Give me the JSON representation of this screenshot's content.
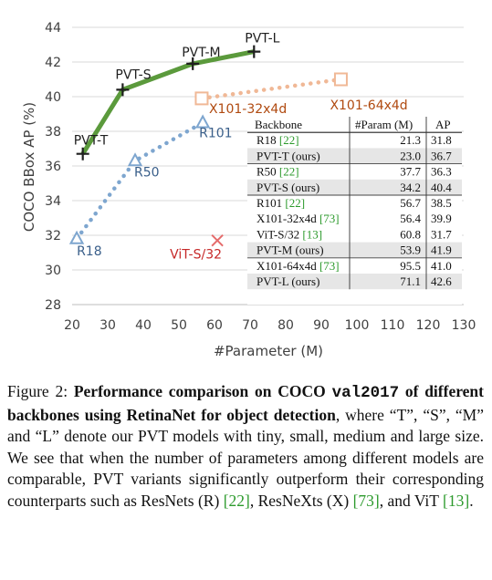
{
  "chart_data": {
    "type": "scatter",
    "xlabel": "#Parameter (M)",
    "ylabel": "COCO BBox AP (%)",
    "xlim": [
      20,
      130
    ],
    "ylim": [
      28,
      44
    ],
    "xticks": [
      20,
      30,
      40,
      50,
      60,
      70,
      80,
      90,
      100,
      110,
      120,
      130
    ],
    "yticks": [
      28,
      30,
      32,
      34,
      36,
      38,
      40,
      42,
      44
    ],
    "grid": "horizontal",
    "series": [
      {
        "name": "PVT",
        "style": "line-plus",
        "color": "#5b9a3c",
        "points": [
          {
            "label": "PVT-T",
            "x": 23.0,
            "y": 36.7
          },
          {
            "label": "PVT-S",
            "x": 34.2,
            "y": 40.4
          },
          {
            "label": "PVT-M",
            "x": 53.9,
            "y": 41.9
          },
          {
            "label": "PVT-L",
            "x": 71.1,
            "y": 42.6
          }
        ]
      },
      {
        "name": "R",
        "style": "dotted-triangle",
        "color": "#7ea6cf",
        "label_color": "#3a5f8a",
        "points": [
          {
            "label": "R18",
            "x": 21.3,
            "y": 31.8
          },
          {
            "label": "R50",
            "x": 37.7,
            "y": 36.3
          },
          {
            "label": "R101",
            "x": 56.7,
            "y": 38.5
          }
        ]
      },
      {
        "name": "X",
        "style": "dotted-square",
        "color": "#f0b896",
        "label_color": "#b04a10",
        "points": [
          {
            "label": "X101-32x4d",
            "x": 56.4,
            "y": 39.9
          },
          {
            "label": "X101-64x4d",
            "x": 95.5,
            "y": 41.0
          }
        ]
      },
      {
        "name": "ViT",
        "style": "cross",
        "color": "#e56b6b",
        "label_color": "#c62828",
        "points": [
          {
            "label": "ViT-S/32",
            "x": 60.8,
            "y": 31.7
          }
        ]
      }
    ],
    "table": {
      "headers": [
        "Backbone",
        "#Param (M)",
        "AP"
      ],
      "groups": [
        [
          {
            "name": "R18 ",
            "ref": "[22]",
            "param": "21.3",
            "ap": "31.8",
            "shade": false
          },
          {
            "name": "PVT-T (ours)",
            "ref": "",
            "param": "23.0",
            "ap": "36.7",
            "shade": true
          }
        ],
        [
          {
            "name": "R50 ",
            "ref": "[22]",
            "param": "37.7",
            "ap": "36.3",
            "shade": false
          },
          {
            "name": "PVT-S (ours)",
            "ref": "",
            "param": "34.2",
            "ap": "40.4",
            "shade": true
          }
        ],
        [
          {
            "name": "R101 ",
            "ref": "[22]",
            "param": "56.7",
            "ap": "38.5",
            "shade": false
          },
          {
            "name": "X101-32x4d ",
            "ref": "[73]",
            "param": "56.4",
            "ap": "39.9",
            "shade": false
          },
          {
            "name": "ViT-S/32 ",
            "ref": "[13]",
            "param": "60.8",
            "ap": "31.7",
            "shade": false
          },
          {
            "name": "PVT-M (ours)",
            "ref": "",
            "param": "53.9",
            "ap": "41.9",
            "shade": true
          }
        ],
        [
          {
            "name": "X101-64x4d ",
            "ref": "[73]",
            "param": "95.5",
            "ap": "41.0",
            "shade": false
          },
          {
            "name": "PVT-L (ours)",
            "ref": "",
            "param": "71.1",
            "ap": "42.6",
            "shade": true
          }
        ]
      ]
    }
  },
  "caption": {
    "prefix": "Figure 2: ",
    "bold_1": "Performance comparison on COCO ",
    "bold_mono": "val2017",
    "bold_2": " of different backbones using RetinaNet for object detection",
    "body_1": ", where “T”, “S”, “M” and “L” denote our PVT models with tiny, small, medium and large size. We see that when the number of parameters among different models are comparable, PVT variants significantly outperform their corresponding counterparts such as ResNets (R) ",
    "cite_1": "[22]",
    "body_2": ", ResNeXts (X) ",
    "cite_2": "[73]",
    "body_3": ", and ViT ",
    "cite_3": "[13]",
    "body_4": "."
  }
}
